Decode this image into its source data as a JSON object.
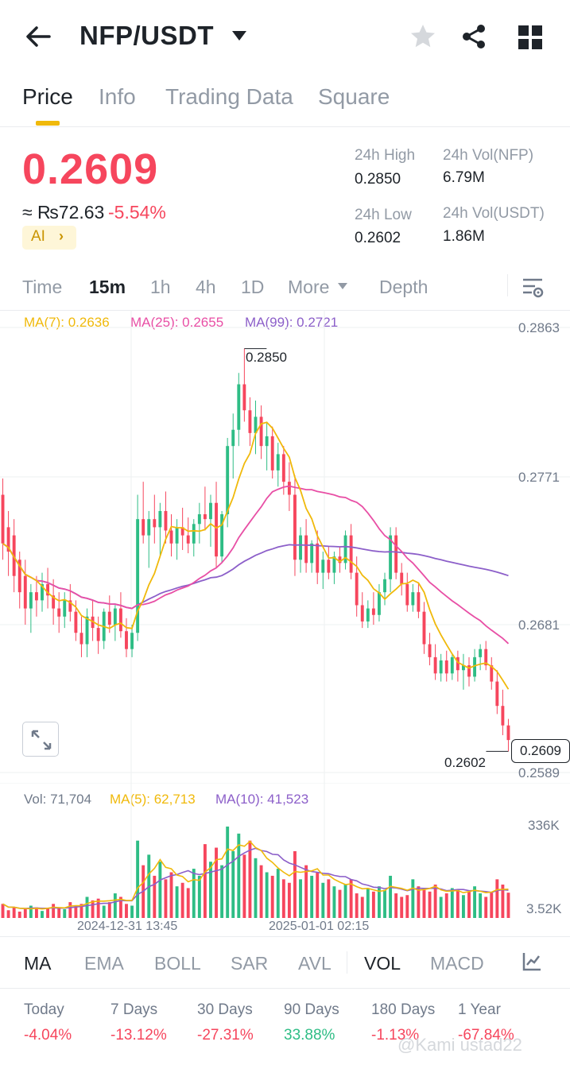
{
  "header": {
    "pair": "NFP/USDT"
  },
  "tabs": [
    {
      "label": "Price",
      "active": true
    },
    {
      "label": "Info",
      "active": false
    },
    {
      "label": "Trading Data",
      "active": false
    },
    {
      "label": "Square",
      "active": false
    }
  ],
  "ticker": {
    "last_price": "0.2609",
    "approx_local": "≈ ₨72.63",
    "change_pct": "-5.54%",
    "ai_label": "AI",
    "high_label": "24h High",
    "high_value": "0.2850",
    "low_label": "24h Low",
    "low_value": "0.2602",
    "vol_base_label": "24h Vol(NFP)",
    "vol_base_value": "6.79M",
    "vol_quote_label": "24h Vol(USDT)",
    "vol_quote_value": "1.86M"
  },
  "intervals": {
    "items": [
      "Time",
      "15m",
      "1h",
      "4h",
      "1D",
      "More",
      "Depth"
    ],
    "active": "15m"
  },
  "ma_legend": {
    "ma7": "MA(7): 0.2636",
    "ma25": "MA(25): 0.2655",
    "ma99": "MA(99): 0.2721"
  },
  "y_axis": [
    "0.2863",
    "0.2771",
    "0.2681",
    "0.2589"
  ],
  "high_marker": "0.2850",
  "low_marker": "0.2602",
  "current_price": "0.2609",
  "vol_legend": {
    "vol": "Vol: 71,704",
    "ma5": "MA(5): 62,713",
    "ma10": "MA(10): 41,523"
  },
  "vol_axis": [
    "336K",
    "3.52K"
  ],
  "x_axis": [
    "2024-12-31 13:45",
    "2025-01-01 02:15"
  ],
  "indicators": {
    "items": [
      "MA",
      "EMA",
      "BOLL",
      "SAR",
      "AVL",
      "VOL",
      "MACD"
    ],
    "active": [
      "MA",
      "VOL"
    ]
  },
  "performance": [
    {
      "label": "Today",
      "value": "-4.04%"
    },
    {
      "label": "7 Days",
      "value": "-13.12%"
    },
    {
      "label": "30 Days",
      "value": "-27.31%"
    },
    {
      "label": "90 Days",
      "value": "33.88%"
    },
    {
      "label": "180 Days",
      "value": "-1.13%"
    },
    {
      "label": "1 Year",
      "value": "-67.84%"
    }
  ],
  "watermark": "@Kami ustad22",
  "colors": {
    "up": "#2ebd85",
    "down": "#f6465d",
    "accent": "#f0b90b",
    "ma7": "#f0b90b",
    "ma25": "#e84fa5",
    "ma99": "#8c5fc9"
  },
  "chart_data": {
    "type": "candlestick",
    "interval": "15m",
    "ylim": [
      0.2589,
      0.2863
    ],
    "candles": [
      {
        "o": 0.276,
        "h": 0.277,
        "l": 0.272,
        "c": 0.273
      },
      {
        "o": 0.274,
        "h": 0.275,
        "l": 0.271,
        "c": 0.2725
      },
      {
        "o": 0.2735,
        "h": 0.2745,
        "l": 0.27,
        "c": 0.271
      },
      {
        "o": 0.272,
        "h": 0.2725,
        "l": 0.269,
        "c": 0.27
      },
      {
        "o": 0.271,
        "h": 0.272,
        "l": 0.268,
        "c": 0.269
      },
      {
        "o": 0.269,
        "h": 0.2705,
        "l": 0.2675,
        "c": 0.27
      },
      {
        "o": 0.27,
        "h": 0.271,
        "l": 0.2685,
        "c": 0.2695
      },
      {
        "o": 0.2695,
        "h": 0.2712,
        "l": 0.2688,
        "c": 0.2705
      },
      {
        "o": 0.2705,
        "h": 0.2715,
        "l": 0.269,
        "c": 0.2698
      },
      {
        "o": 0.2698,
        "h": 0.2708,
        "l": 0.268,
        "c": 0.269
      },
      {
        "o": 0.269,
        "h": 0.27,
        "l": 0.2675,
        "c": 0.2685
      },
      {
        "o": 0.2685,
        "h": 0.27,
        "l": 0.2678,
        "c": 0.2695
      },
      {
        "o": 0.2695,
        "h": 0.2705,
        "l": 0.2682,
        "c": 0.2688
      },
      {
        "o": 0.2688,
        "h": 0.2695,
        "l": 0.267,
        "c": 0.2675
      },
      {
        "o": 0.2675,
        "h": 0.2685,
        "l": 0.266,
        "c": 0.2668
      },
      {
        "o": 0.2668,
        "h": 0.269,
        "l": 0.266,
        "c": 0.2685
      },
      {
        "o": 0.2685,
        "h": 0.2695,
        "l": 0.267,
        "c": 0.2678
      },
      {
        "o": 0.2678,
        "h": 0.2685,
        "l": 0.2662,
        "c": 0.267
      },
      {
        "o": 0.267,
        "h": 0.269,
        "l": 0.2665,
        "c": 0.2688
      },
      {
        "o": 0.2688,
        "h": 0.2698,
        "l": 0.2675,
        "c": 0.268
      },
      {
        "o": 0.268,
        "h": 0.2692,
        "l": 0.267,
        "c": 0.269
      },
      {
        "o": 0.269,
        "h": 0.27,
        "l": 0.2672,
        "c": 0.2676
      },
      {
        "o": 0.2676,
        "h": 0.2684,
        "l": 0.266,
        "c": 0.2665
      },
      {
        "o": 0.2665,
        "h": 0.268,
        "l": 0.266,
        "c": 0.2675
      },
      {
        "o": 0.2675,
        "h": 0.276,
        "l": 0.267,
        "c": 0.2745
      },
      {
        "o": 0.2745,
        "h": 0.2768,
        "l": 0.273,
        "c": 0.2735
      },
      {
        "o": 0.2735,
        "h": 0.275,
        "l": 0.2715,
        "c": 0.2745
      },
      {
        "o": 0.2745,
        "h": 0.276,
        "l": 0.273,
        "c": 0.274
      },
      {
        "o": 0.274,
        "h": 0.2755,
        "l": 0.2722,
        "c": 0.275
      },
      {
        "o": 0.275,
        "h": 0.2762,
        "l": 0.273,
        "c": 0.2738
      },
      {
        "o": 0.2738,
        "h": 0.2748,
        "l": 0.2722,
        "c": 0.273
      },
      {
        "o": 0.273,
        "h": 0.2745,
        "l": 0.272,
        "c": 0.274
      },
      {
        "o": 0.274,
        "h": 0.2752,
        "l": 0.2726,
        "c": 0.2735
      },
      {
        "o": 0.2735,
        "h": 0.2746,
        "l": 0.2724,
        "c": 0.273
      },
      {
        "o": 0.273,
        "h": 0.2745,
        "l": 0.2722,
        "c": 0.2742
      },
      {
        "o": 0.2742,
        "h": 0.2755,
        "l": 0.273,
        "c": 0.2748
      },
      {
        "o": 0.2748,
        "h": 0.2765,
        "l": 0.2738,
        "c": 0.2745
      },
      {
        "o": 0.2745,
        "h": 0.276,
        "l": 0.2728,
        "c": 0.2755
      },
      {
        "o": 0.2755,
        "h": 0.2768,
        "l": 0.2715,
        "c": 0.2722
      },
      {
        "o": 0.2722,
        "h": 0.275,
        "l": 0.2718,
        "c": 0.2748
      },
      {
        "o": 0.2748,
        "h": 0.2795,
        "l": 0.274,
        "c": 0.279
      },
      {
        "o": 0.279,
        "h": 0.281,
        "l": 0.277,
        "c": 0.28
      },
      {
        "o": 0.28,
        "h": 0.2835,
        "l": 0.279,
        "c": 0.2828
      },
      {
        "o": 0.2828,
        "h": 0.285,
        "l": 0.2805,
        "c": 0.2812
      },
      {
        "o": 0.2812,
        "h": 0.282,
        "l": 0.279,
        "c": 0.2798
      },
      {
        "o": 0.2798,
        "h": 0.2818,
        "l": 0.2785,
        "c": 0.2808
      },
      {
        "o": 0.2808,
        "h": 0.2815,
        "l": 0.2782,
        "c": 0.279
      },
      {
        "o": 0.279,
        "h": 0.2805,
        "l": 0.2775,
        "c": 0.2796
      },
      {
        "o": 0.2796,
        "h": 0.2802,
        "l": 0.277,
        "c": 0.2775
      },
      {
        "o": 0.2775,
        "h": 0.2792,
        "l": 0.2765,
        "c": 0.2785
      },
      {
        "o": 0.2785,
        "h": 0.279,
        "l": 0.276,
        "c": 0.2768
      },
      {
        "o": 0.2768,
        "h": 0.278,
        "l": 0.275,
        "c": 0.276
      },
      {
        "o": 0.276,
        "h": 0.2772,
        "l": 0.271,
        "c": 0.272
      },
      {
        "o": 0.272,
        "h": 0.274,
        "l": 0.2712,
        "c": 0.2735
      },
      {
        "o": 0.2735,
        "h": 0.2745,
        "l": 0.2712,
        "c": 0.2718
      },
      {
        "o": 0.2718,
        "h": 0.2732,
        "l": 0.2712,
        "c": 0.273
      },
      {
        "o": 0.273,
        "h": 0.2738,
        "l": 0.2705,
        "c": 0.2712
      },
      {
        "o": 0.2712,
        "h": 0.2725,
        "l": 0.2702,
        "c": 0.272
      },
      {
        "o": 0.272,
        "h": 0.2728,
        "l": 0.2708,
        "c": 0.2712
      },
      {
        "o": 0.2712,
        "h": 0.2725,
        "l": 0.2705,
        "c": 0.2722
      },
      {
        "o": 0.2722,
        "h": 0.2728,
        "l": 0.2712,
        "c": 0.2718
      },
      {
        "o": 0.2718,
        "h": 0.2738,
        "l": 0.2714,
        "c": 0.2735
      },
      {
        "o": 0.2735,
        "h": 0.2742,
        "l": 0.2708,
        "c": 0.2712
      },
      {
        "o": 0.2712,
        "h": 0.2722,
        "l": 0.2685,
        "c": 0.2692
      },
      {
        "o": 0.2692,
        "h": 0.27,
        "l": 0.2678,
        "c": 0.2682
      },
      {
        "o": 0.2682,
        "h": 0.2695,
        "l": 0.2678,
        "c": 0.269
      },
      {
        "o": 0.269,
        "h": 0.27,
        "l": 0.268,
        "c": 0.2686
      },
      {
        "o": 0.2686,
        "h": 0.2705,
        "l": 0.2682,
        "c": 0.27
      },
      {
        "o": 0.27,
        "h": 0.2712,
        "l": 0.2692,
        "c": 0.2708
      },
      {
        "o": 0.2708,
        "h": 0.274,
        "l": 0.27,
        "c": 0.2735
      },
      {
        "o": 0.2735,
        "h": 0.274,
        "l": 0.2708,
        "c": 0.2712
      },
      {
        "o": 0.2712,
        "h": 0.2718,
        "l": 0.2698,
        "c": 0.2705
      },
      {
        "o": 0.2705,
        "h": 0.2712,
        "l": 0.2688,
        "c": 0.2692
      },
      {
        "o": 0.2692,
        "h": 0.2705,
        "l": 0.2688,
        "c": 0.27
      },
      {
        "o": 0.27,
        "h": 0.2706,
        "l": 0.2684,
        "c": 0.2688
      },
      {
        "o": 0.2688,
        "h": 0.2694,
        "l": 0.2662,
        "c": 0.2668
      },
      {
        "o": 0.2668,
        "h": 0.2675,
        "l": 0.2655,
        "c": 0.266
      },
      {
        "o": 0.266,
        "h": 0.2668,
        "l": 0.2646,
        "c": 0.265
      },
      {
        "o": 0.265,
        "h": 0.2662,
        "l": 0.2645,
        "c": 0.2658
      },
      {
        "o": 0.2658,
        "h": 0.2664,
        "l": 0.2645,
        "c": 0.265
      },
      {
        "o": 0.265,
        "h": 0.2662,
        "l": 0.2646,
        "c": 0.266
      },
      {
        "o": 0.266,
        "h": 0.2664,
        "l": 0.2645,
        "c": 0.2652
      },
      {
        "o": 0.2652,
        "h": 0.2662,
        "l": 0.264,
        "c": 0.2655
      },
      {
        "o": 0.2655,
        "h": 0.266,
        "l": 0.2642,
        "c": 0.2648
      },
      {
        "o": 0.2648,
        "h": 0.2665,
        "l": 0.2645,
        "c": 0.266
      },
      {
        "o": 0.266,
        "h": 0.2668,
        "l": 0.2652,
        "c": 0.2665
      },
      {
        "o": 0.2665,
        "h": 0.267,
        "l": 0.2652,
        "c": 0.2655
      },
      {
        "o": 0.2655,
        "h": 0.266,
        "l": 0.264,
        "c": 0.2645
      },
      {
        "o": 0.2645,
        "h": 0.2652,
        "l": 0.2625,
        "c": 0.263
      },
      {
        "o": 0.263,
        "h": 0.264,
        "l": 0.2612,
        "c": 0.2618
      },
      {
        "o": 0.2618,
        "h": 0.2622,
        "l": 0.2602,
        "c": 0.2609
      }
    ],
    "ma_series": [
      {
        "name": "MA(7)",
        "last": 0.2636
      },
      {
        "name": "MA(25)",
        "last": 0.2655
      },
      {
        "name": "MA(99)",
        "last": 0.2721
      }
    ],
    "volume": {
      "ylim": [
        3520,
        336000
      ],
      "values": [
        40,
        22,
        30,
        18,
        25,
        35,
        30,
        20,
        28,
        40,
        30,
        25,
        45,
        35,
        40,
        60,
        50,
        55,
        35,
        45,
        70,
        60,
        40,
        35,
        220,
        150,
        180,
        120,
        160,
        110,
        130,
        90,
        100,
        85,
        140,
        120,
        210,
        160,
        200,
        150,
        260,
        190,
        240,
        180,
        220,
        170,
        150,
        130,
        120,
        140,
        110,
        100,
        190,
        110,
        150,
        120,
        130,
        100,
        110,
        90,
        80,
        95,
        110,
        70,
        60,
        85,
        75,
        90,
        80,
        120,
        70,
        60,
        65,
        110,
        90,
        80,
        75,
        95,
        60,
        70,
        85,
        80,
        65,
        75,
        90,
        70,
        60,
        72,
        110,
        95,
        72
      ]
    }
  }
}
